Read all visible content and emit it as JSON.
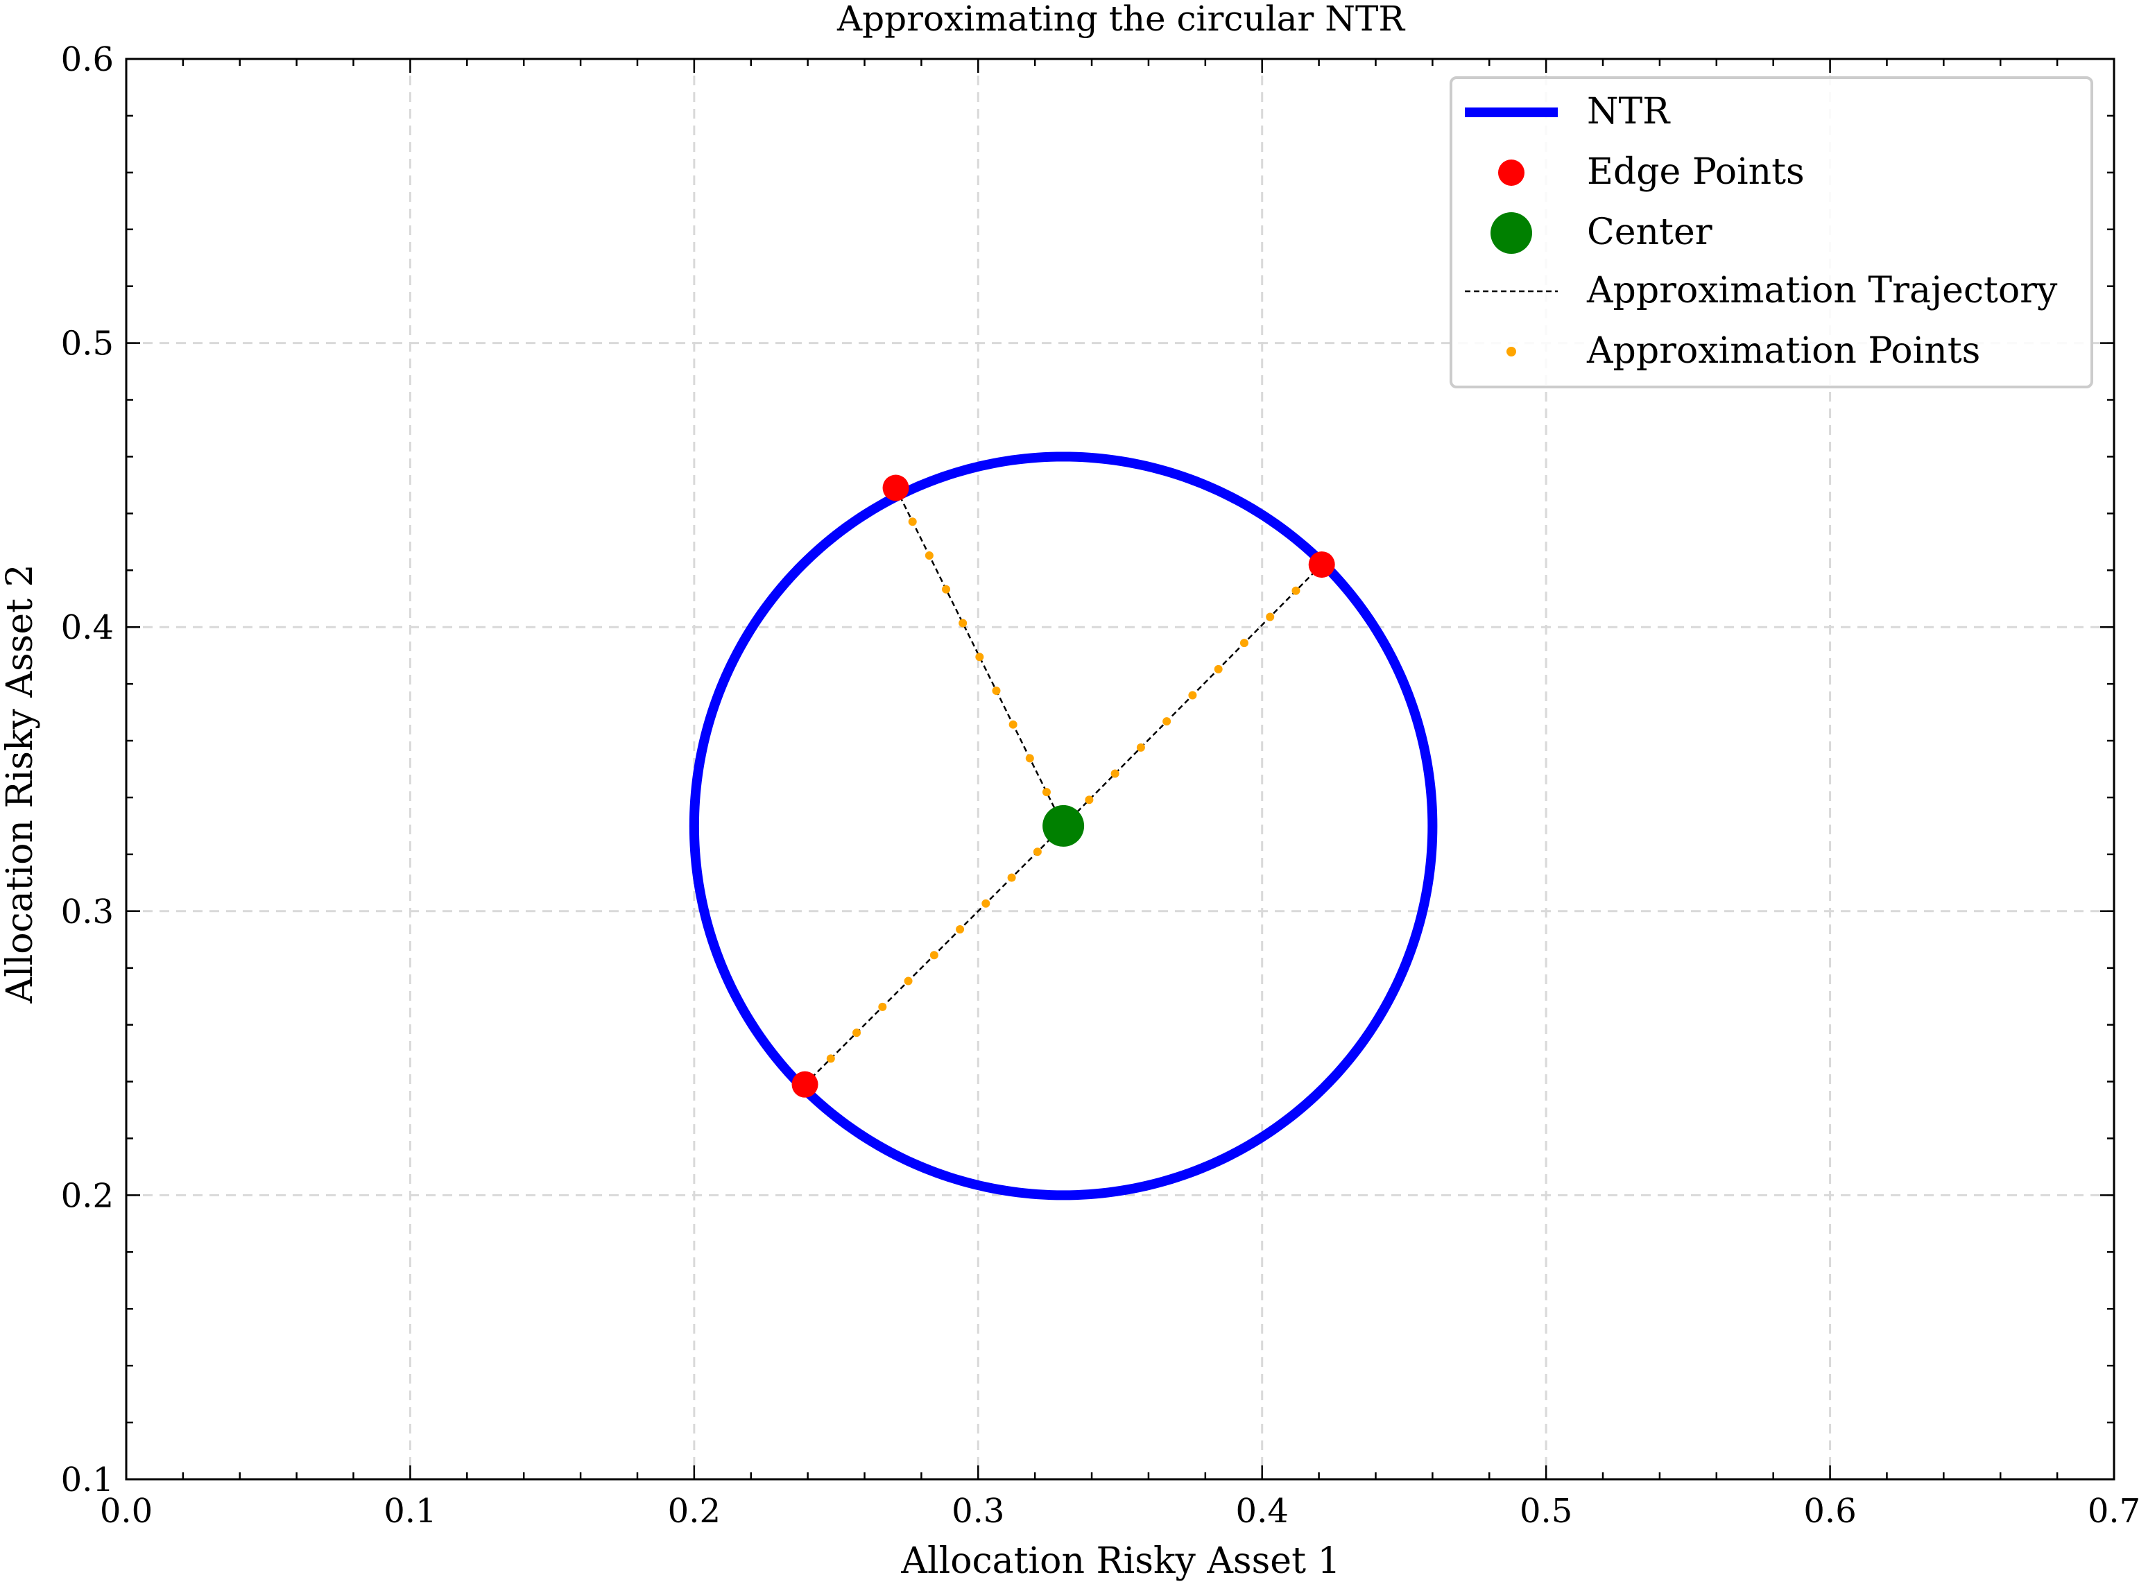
{
  "chart_data": {
    "type": "scatter",
    "title": "Approximating the circular NTR",
    "xlabel": "Allocation Risky Asset 1",
    "ylabel": "Allocation Risky Asset 2",
    "xlim": [
      0.0,
      0.7
    ],
    "ylim": [
      0.1,
      0.6
    ],
    "xticks": [
      0.0,
      0.1,
      0.2,
      0.3,
      0.4,
      0.5,
      0.6,
      0.7
    ],
    "yticks": [
      0.1,
      0.2,
      0.3,
      0.4,
      0.5,
      0.6
    ],
    "x_tick_labels": [
      "0.0",
      "0.1",
      "0.2",
      "0.3",
      "0.4",
      "0.5",
      "0.6",
      "0.7"
    ],
    "y_tick_labels": [
      "0.1",
      "0.2",
      "0.3",
      "0.4",
      "0.5",
      "0.6"
    ],
    "grid": true,
    "legend_position": "top-right",
    "ntr_circle": {
      "name": "NTR",
      "center": [
        0.33,
        0.33
      ],
      "radius": 0.13,
      "color": "#0000ff"
    },
    "edge_points": {
      "name": "Edge Points",
      "color": "#ff0000",
      "points": [
        [
          0.271,
          0.449
        ],
        [
          0.421,
          0.422
        ],
        [
          0.239,
          0.239
        ]
      ]
    },
    "center": {
      "name": "Center",
      "color": "#008000",
      "point": [
        0.33,
        0.33
      ]
    },
    "trajectory": {
      "name": "Approximation Trajectory",
      "color": "#000000"
    },
    "approximation_points": {
      "name": "Approximation Points",
      "color": "#ffa500",
      "points_per_segment": 10
    }
  }
}
